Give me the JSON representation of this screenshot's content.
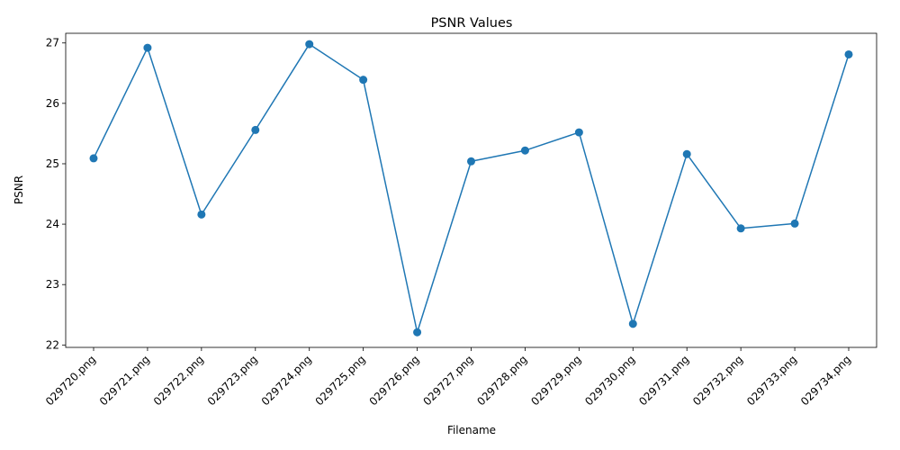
{
  "chart_data": {
    "type": "line",
    "title": "PSNR Values",
    "xlabel": "Filename",
    "ylabel": "PSNR",
    "categories": [
      "029720.png",
      "029721.png",
      "029722.png",
      "029723.png",
      "029724.png",
      "029725.png",
      "029726.png",
      "029727.png",
      "029728.png",
      "029729.png",
      "029730.png",
      "029731.png",
      "029732.png",
      "029733.png",
      "029734.png"
    ],
    "series": [
      {
        "values": [
          25.09,
          26.92,
          24.16,
          25.56,
          26.98,
          26.39,
          22.21,
          25.04,
          25.22,
          25.52,
          22.35,
          25.16,
          23.93,
          24.01,
          26.81
        ],
        "color": "#1f77b4",
        "marker": "circle"
      }
    ],
    "ylim": [
      21.96,
      27.16
    ],
    "yticks": [
      22,
      23,
      24,
      25,
      26,
      27
    ],
    "grid": false,
    "legend": "none"
  }
}
